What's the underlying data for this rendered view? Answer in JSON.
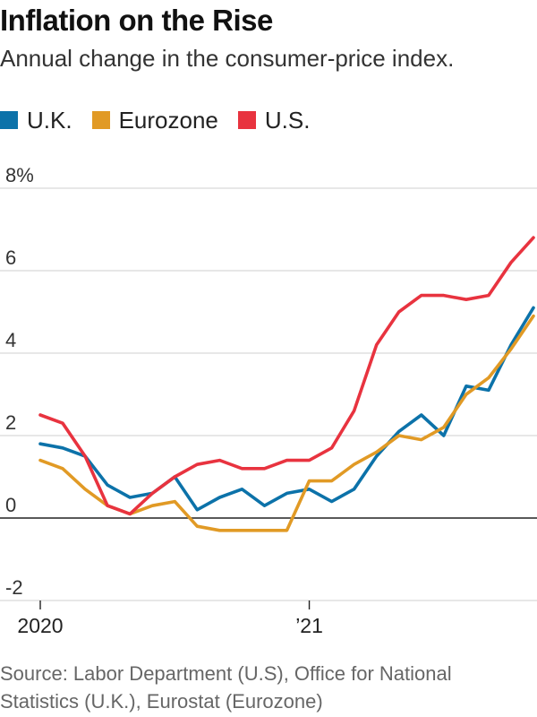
{
  "title": "Inflation on the Rise",
  "subtitle": "Annual change in the consumer-price index.",
  "legend": [
    {
      "label": "U.K.",
      "color": "#0c72a9"
    },
    {
      "label": "Eurozone",
      "color": "#e19a25"
    },
    {
      "label": "U.S.",
      "color": "#e8333f"
    }
  ],
  "source": {
    "line1": "Source: Labor Department (U.S), Office for National",
    "line2": "Statistics (U.K.), Eurostat (Eurozone)"
  },
  "chart_data": {
    "type": "line",
    "title": "Inflation on the Rise",
    "ylabel": "Annual change in the consumer-price index (%)",
    "ylim": [
      -2,
      8
    ],
    "y_ticks": [
      {
        "value": 8,
        "label": "8%"
      },
      {
        "value": 6,
        "label": "6"
      },
      {
        "value": 4,
        "label": "4"
      },
      {
        "value": 2,
        "label": "2"
      },
      {
        "value": 0,
        "label": "0"
      },
      {
        "value": -2,
        "label": "-2"
      }
    ],
    "x_ticks": [
      {
        "value": 0,
        "label": "2020"
      },
      {
        "value": 12,
        "label": "’21"
      }
    ],
    "x": [
      "2020-01",
      "2020-02",
      "2020-03",
      "2020-04",
      "2020-05",
      "2020-06",
      "2020-07",
      "2020-08",
      "2020-09",
      "2020-10",
      "2020-11",
      "2020-12",
      "2021-01",
      "2021-02",
      "2021-03",
      "2021-04",
      "2021-05",
      "2021-06",
      "2021-07",
      "2021-08",
      "2021-09",
      "2021-10",
      "2021-11"
    ],
    "grid": true,
    "series": [
      {
        "name": "U.K.",
        "color": "#0c72a9",
        "values": [
          1.8,
          1.7,
          1.5,
          0.8,
          0.5,
          0.6,
          1.0,
          0.2,
          0.5,
          0.7,
          0.3,
          0.6,
          0.7,
          0.4,
          0.7,
          1.5,
          2.1,
          2.5,
          2.0,
          3.2,
          3.1,
          4.2,
          5.1
        ]
      },
      {
        "name": "Eurozone",
        "color": "#e19a25",
        "values": [
          1.4,
          1.2,
          0.7,
          0.3,
          0.1,
          0.3,
          0.4,
          -0.2,
          -0.3,
          -0.3,
          -0.3,
          -0.3,
          0.9,
          0.9,
          1.3,
          1.6,
          2.0,
          1.9,
          2.2,
          3.0,
          3.4,
          4.1,
          4.9
        ]
      },
      {
        "name": "U.S.",
        "color": "#e8333f",
        "values": [
          2.5,
          2.3,
          1.5,
          0.3,
          0.1,
          0.6,
          1.0,
          1.3,
          1.4,
          1.2,
          1.2,
          1.4,
          1.4,
          1.7,
          2.6,
          4.2,
          5.0,
          5.4,
          5.4,
          5.3,
          5.4,
          6.2,
          6.8
        ]
      }
    ]
  }
}
